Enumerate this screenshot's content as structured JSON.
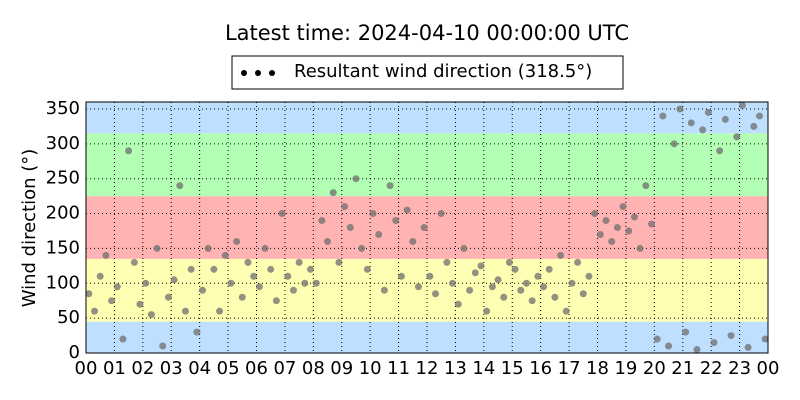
{
  "chart_data": {
    "type": "scatter",
    "title": "Latest time: 2024-04-10 00:00:00 UTC",
    "y_label": "Wind direction (°)",
    "xlim": [
      0,
      24
    ],
    "ylim": [
      0,
      360
    ],
    "xticks": [
      {
        "value": 0,
        "label": "00"
      },
      {
        "value": 1,
        "label": "01"
      },
      {
        "value": 2,
        "label": "02"
      },
      {
        "value": 3,
        "label": "03"
      },
      {
        "value": 4,
        "label": "04"
      },
      {
        "value": 5,
        "label": "05"
      },
      {
        "value": 6,
        "label": "06"
      },
      {
        "value": 7,
        "label": "07"
      },
      {
        "value": 8,
        "label": "08"
      },
      {
        "value": 9,
        "label": "09"
      },
      10,
      11,
      12,
      13,
      14,
      15,
      16,
      17,
      18,
      19,
      20,
      21,
      22,
      23,
      {
        "value": 24,
        "label": "00"
      }
    ],
    "yticks": [
      0,
      50,
      100,
      150,
      200,
      250,
      300,
      350
    ],
    "grid": true,
    "bands": [
      {
        "from": 0,
        "to": 45,
        "color": "#bfdfff"
      },
      {
        "from": 45,
        "to": 135,
        "color": "#ffffb3"
      },
      {
        "from": 135,
        "to": 225,
        "color": "#ffb3b3"
      },
      {
        "from": 225,
        "to": 315,
        "color": "#b3ffb3"
      },
      {
        "from": 315,
        "to": 360,
        "color": "#bfdfff"
      }
    ],
    "legend_position": "upper center",
    "series": [
      {
        "name": "Resultant wind direction (318.5°)",
        "color": "#6e6e6e",
        "x": [
          0.1,
          0.3,
          0.5,
          0.7,
          0.9,
          1.1,
          1.3,
          1.5,
          1.7,
          1.9,
          2.1,
          2.3,
          2.5,
          2.7,
          2.9,
          3.1,
          3.3,
          3.5,
          3.7,
          3.9,
          4.1,
          4.3,
          4.5,
          4.7,
          4.9,
          5.1,
          5.3,
          5.5,
          5.7,
          5.9,
          6.1,
          6.3,
          6.5,
          6.7,
          6.9,
          7.1,
          7.3,
          7.5,
          7.7,
          7.9,
          8.1,
          8.3,
          8.5,
          8.7,
          8.9,
          9.1,
          9.3,
          9.5,
          9.7,
          9.9,
          10.1,
          10.3,
          10.5,
          10.7,
          10.9,
          11.1,
          11.3,
          11.5,
          11.7,
          11.9,
          12.1,
          12.3,
          12.5,
          12.7,
          12.9,
          13.1,
          13.3,
          13.5,
          13.7,
          13.9,
          14.1,
          14.3,
          14.5,
          14.7,
          14.9,
          15.1,
          15.3,
          15.5,
          15.7,
          15.9,
          16.1,
          16.3,
          16.5,
          16.7,
          16.9,
          17.1,
          17.3,
          17.5,
          17.7,
          17.9,
          18.1,
          18.3,
          18.5,
          18.7,
          18.9,
          19.1,
          19.3,
          19.5,
          19.7,
          19.9,
          20.1,
          20.3,
          20.5,
          20.7,
          20.9,
          21.1,
          21.3,
          21.5,
          21.7,
          21.9,
          22.1,
          22.3,
          22.5,
          22.7,
          22.9,
          23.1,
          23.3,
          23.5,
          23.7,
          23.9
        ],
        "values": [
          85,
          60,
          110,
          140,
          75,
          95,
          20,
          290,
          130,
          70,
          100,
          55,
          150,
          10,
          80,
          105,
          240,
          60,
          120,
          30,
          90,
          150,
          120,
          60,
          140,
          100,
          160,
          80,
          130,
          110,
          95,
          150,
          120,
          75,
          200,
          110,
          90,
          130,
          100,
          120,
          100,
          190,
          160,
          230,
          130,
          210,
          180,
          250,
          150,
          120,
          200,
          170,
          90,
          240,
          190,
          110,
          205,
          160,
          95,
          180,
          110,
          85,
          200,
          130,
          100,
          70,
          150,
          90,
          115,
          125,
          60,
          95,
          105,
          80,
          130,
          120,
          90,
          100,
          75,
          110,
          95,
          120,
          80,
          140,
          60,
          100,
          130,
          85,
          110,
          200,
          170,
          190,
          160,
          180,
          210,
          175,
          195,
          150,
          240,
          185,
          20,
          340,
          10,
          300,
          350,
          30,
          330,
          5,
          320,
          345,
          15,
          290,
          335,
          25,
          310,
          355,
          8,
          325,
          340,
          20
        ]
      }
    ]
  }
}
